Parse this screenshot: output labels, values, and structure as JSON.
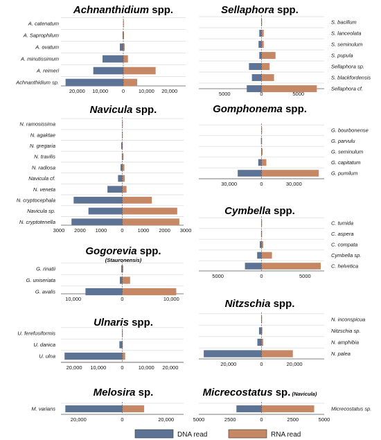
{
  "colors": {
    "dna": "#5c7396",
    "rna": "#c58764"
  },
  "legend": {
    "dna_label": "DNA read",
    "rna_label": "RNA read"
  },
  "chart_data": [
    {
      "type": "bar",
      "title_name": "Achnanthidium",
      "title_suffix": "spp.",
      "subtitle": "",
      "categories": [
        "A. catenatum",
        "A. Saprophilum",
        "A. ovatum",
        "A. minutissimum",
        "A. reimeri",
        "Achnanthidium sp."
      ],
      "series": [
        {
          "name": "DNA read",
          "values": [
            50,
            300,
            1500,
            9000,
            13000,
            25000
          ]
        },
        {
          "name": "RNA read",
          "values": [
            50,
            300,
            600,
            2000,
            14000,
            6000
          ]
        }
      ],
      "xlim": [
        -27000,
        27000
      ],
      "ticks": [
        {
          "v": -20000,
          "t": "20,000"
        },
        {
          "v": -10000,
          "t": "10,000"
        },
        {
          "v": 0,
          "t": "0"
        },
        {
          "v": 10000,
          "t": "10,000"
        },
        {
          "v": 20000,
          "t": "20,000"
        }
      ]
    },
    {
      "type": "bar",
      "title_name": "Sellaphora",
      "title_suffix": "spp.",
      "subtitle": "",
      "categories": [
        "S. bacillum",
        "S. lanceolata",
        "S. seminulum",
        "S. pupula",
        "Sellaphora sp.",
        "S. blackfordensis",
        "Sellaphora cf."
      ],
      "series": [
        {
          "name": "DNA read",
          "values": [
            50,
            300,
            400,
            300,
            1700,
            1300,
            2000
          ]
        },
        {
          "name": "RNA read",
          "values": [
            50,
            300,
            300,
            1900,
            1100,
            1700,
            7500
          ]
        }
      ],
      "xlim": [
        -8500,
        8500
      ],
      "ticks": [
        {
          "v": -5000,
          "t": "5000"
        },
        {
          "v": 0,
          "t": "0"
        },
        {
          "v": 5000,
          "t": "5000"
        }
      ]
    },
    {
      "type": "bar",
      "title_name": "Navicula",
      "title_suffix": "spp.",
      "subtitle": "",
      "categories": [
        "N. ramosissima",
        "N. agaktae",
        "N. gregaria",
        "N. travilis",
        "N. radiosa",
        "Navicula cf.",
        "N. veneta",
        "N. cryptocephala",
        "Navicula sp.",
        "N. cryptotenella"
      ],
      "series": [
        {
          "name": "DNA read",
          "values": [
            5,
            10,
            50,
            20,
            80,
            200,
            700,
            2300,
            1600,
            2400
          ]
        },
        {
          "name": "RNA read",
          "values": [
            5,
            10,
            20,
            60,
            100,
            120,
            200,
            1400,
            2600,
            2700
          ]
        }
      ],
      "xlim": [
        -2900,
        2900
      ],
      "ticks": [
        {
          "v": -3000,
          "t": "3000"
        },
        {
          "v": -2000,
          "t": "2000"
        },
        {
          "v": -1000,
          "t": "1000"
        },
        {
          "v": 0,
          "t": "0"
        },
        {
          "v": 1000,
          "t": "1000"
        },
        {
          "v": 2000,
          "t": "2000"
        },
        {
          "v": 3000,
          "t": "3000"
        }
      ]
    },
    {
      "type": "bar",
      "title_name": "Gomphonema",
      "title_suffix": "spp.",
      "subtitle": "",
      "categories": [
        "G. bourbonense",
        "G. parvulu",
        "G. seminulum",
        "G. capitatum",
        "G. pumilum"
      ],
      "series": [
        {
          "name": "DNA read",
          "values": [
            200,
            500,
            300,
            3000,
            22000
          ]
        },
        {
          "name": "RNA read",
          "values": [
            200,
            500,
            1000,
            4500,
            53000
          ]
        }
      ],
      "xlim": [
        -58000,
        58000
      ],
      "ticks": [
        {
          "v": -30000,
          "t": "30,000"
        },
        {
          "v": 0,
          "t": "0"
        },
        {
          "v": 30000,
          "t": "30,000"
        }
      ]
    },
    {
      "type": "bar",
      "title_name": "Gogorevia",
      "title_suffix": "spp.",
      "subtitle": "(Stauronensis)",
      "categories": [
        "G. rinatii",
        "G. uniseriata",
        "G. avalis"
      ],
      "series": [
        {
          "name": "DNA read",
          "values": [
            200,
            500,
            7500
          ]
        },
        {
          "name": "RNA read",
          "values": [
            200,
            1600,
            11000
          ]
        }
      ],
      "xlim": [
        -12500,
        12500
      ],
      "ticks": [
        {
          "v": -10000,
          "t": "10,000"
        },
        {
          "v": 0,
          "t": "0"
        },
        {
          "v": 10000,
          "t": "10,000"
        }
      ]
    },
    {
      "type": "bar",
      "title_name": "Cymbella",
      "title_suffix": "spp.",
      "subtitle": "",
      "categories": [
        "C. tumida",
        "C. aspera",
        "C. compata",
        "Cymbella sp.",
        "C. helvetica"
      ],
      "series": [
        {
          "name": "DNA read",
          "values": [
            30,
            50,
            200,
            500,
            1900
          ]
        },
        {
          "name": "RNA read",
          "values": [
            30,
            50,
            200,
            1200,
            6800
          ]
        }
      ],
      "xlim": [
        -7200,
        7200
      ],
      "ticks": [
        {
          "v": -5000,
          "t": "5000"
        },
        {
          "v": 0,
          "t": "0"
        },
        {
          "v": 5000,
          "t": "5000"
        }
      ]
    },
    {
      "type": "bar",
      "title_name": "Ulnaris",
      "title_suffix": "spp.",
      "subtitle": "",
      "categories": [
        "U. ferefusiformis",
        "U. danica",
        "U. ulna"
      ],
      "series": [
        {
          "name": "DNA read",
          "values": [
            100,
            1200,
            24000
          ]
        },
        {
          "name": "RNA read",
          "values": [
            100,
            200,
            1200
          ]
        }
      ],
      "xlim": [
        -25500,
        25500
      ],
      "ticks": [
        {
          "v": -20000,
          "t": "20,000"
        },
        {
          "v": -10000,
          "t": "10,000"
        },
        {
          "v": 0,
          "t": "0"
        },
        {
          "v": 10000,
          "t": "10,000"
        },
        {
          "v": 20000,
          "t": "20,000"
        }
      ]
    },
    {
      "type": "bar",
      "title_name": "Nitzschia",
      "title_suffix": "spp.",
      "subtitle": "",
      "categories": [
        "N. inconspicua",
        "Nitzschia sp.",
        "N. amphibia",
        "N. palea"
      ],
      "series": [
        {
          "name": "DNA read",
          "values": [
            200,
            1500,
            2500,
            35000
          ]
        },
        {
          "name": "RNA read",
          "values": [
            200,
            500,
            1000,
            19000
          ]
        }
      ],
      "xlim": [
        -38000,
        38000
      ],
      "ticks": [
        {
          "v": -20000,
          "t": "20,000"
        },
        {
          "v": 0,
          "t": "0"
        },
        {
          "v": 20000,
          "t": "20,000"
        }
      ]
    },
    {
      "type": "bar",
      "title_name": "Melosira",
      "title_suffix": "sp.",
      "subtitle": "",
      "categories": [
        "M. varians"
      ],
      "series": [
        {
          "name": "DNA read",
          "values": [
            26000
          ]
        },
        {
          "name": "RNA read",
          "values": [
            10000
          ]
        }
      ],
      "xlim": [
        -28000,
        28000
      ],
      "ticks": [
        {
          "v": -20000,
          "t": "20,000"
        },
        {
          "v": 0,
          "t": "0"
        },
        {
          "v": 20000,
          "t": "20,000"
        }
      ]
    },
    {
      "type": "bar",
      "title_name": "Micrecostatus",
      "title_suffix": "sp.",
      "subtitle": "(Navicula)",
      "categories": [
        "Micrecostatus sp."
      ],
      "series": [
        {
          "name": "DNA read",
          "values": [
            2000
          ]
        },
        {
          "name": "RNA read",
          "values": [
            4200
          ]
        }
      ],
      "xlim": [
        -5000,
        5000
      ],
      "ticks": [
        {
          "v": -5000,
          "t": "5000"
        },
        {
          "v": -2500,
          "t": "2500"
        },
        {
          "v": 0,
          "t": "0"
        },
        {
          "v": 2500,
          "t": "2500"
        },
        {
          "v": 5000,
          "t": "5000"
        }
      ]
    }
  ]
}
